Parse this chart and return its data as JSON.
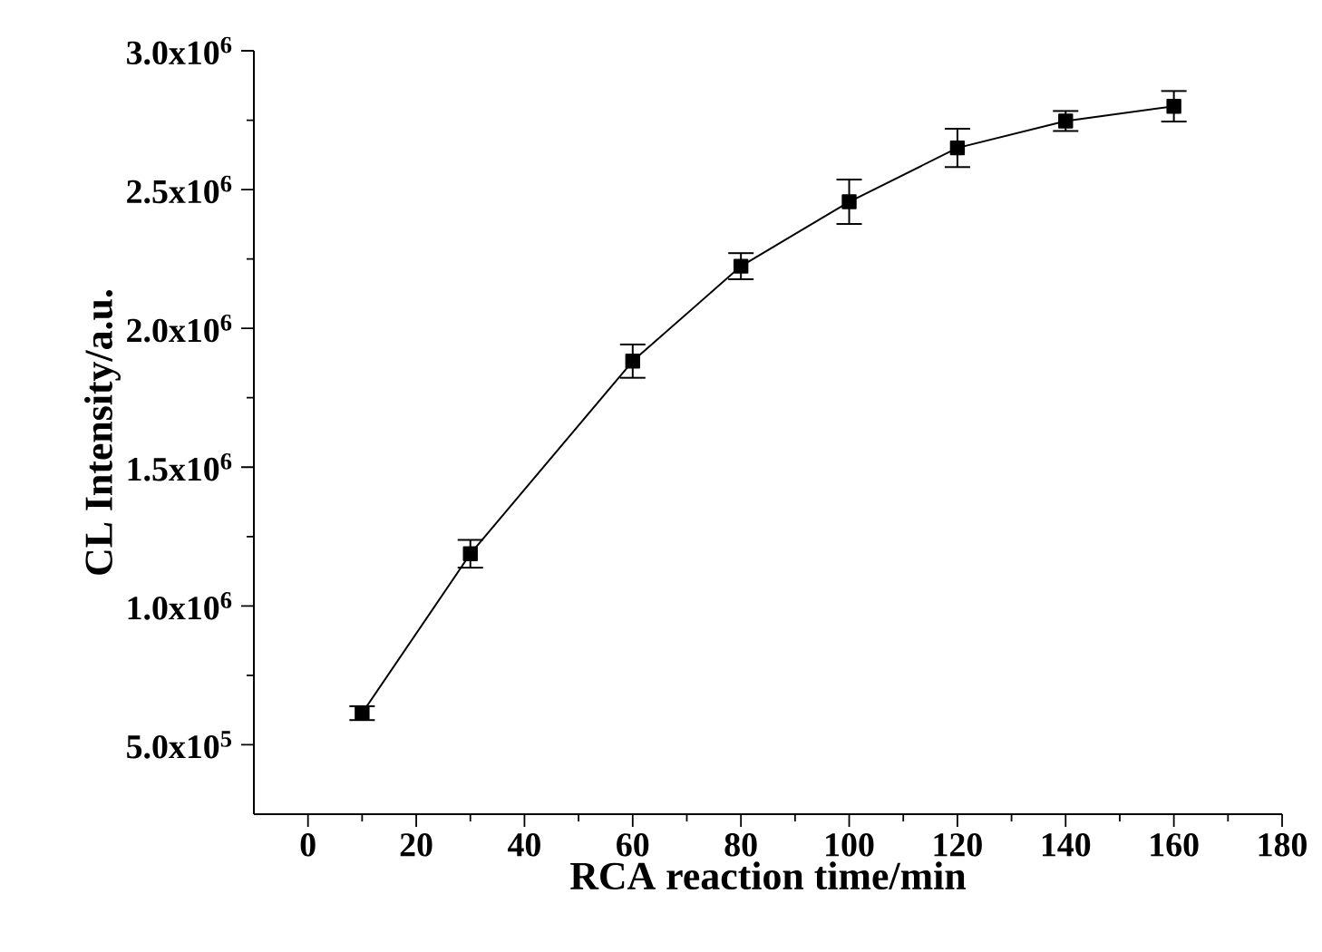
{
  "chart_data": {
    "type": "line",
    "xlabel": "RCA reaction time/min",
    "ylabel": "CL Intensity/a.u.",
    "x": [
      10,
      30,
      60,
      80,
      100,
      120,
      140,
      160
    ],
    "series": [
      {
        "color": "#000000",
        "values": [
          614000,
          1188000,
          1882000,
          2224000,
          2456000,
          2650000,
          2747000,
          2800000
        ],
        "errors": [
          25000,
          50000,
          60000,
          47000,
          80000,
          69000,
          36000,
          55000
        ]
      }
    ],
    "marker": "square",
    "line_style": "solid",
    "xlim": [
      -10,
      180
    ],
    "xticks": [
      0,
      20,
      40,
      60,
      80,
      100,
      120,
      140,
      160,
      180
    ],
    "ylim": [
      250000,
      3000000
    ],
    "yticks": [
      {
        "value": 500000,
        "label": "5.0x10$^{5}$"
      },
      {
        "value": 1000000,
        "label": "1.0x10$^{6}$"
      },
      {
        "value": 1500000,
        "label": "1.5x10$^{6}$"
      },
      {
        "value": 2000000,
        "label": "2.0x10$^{6}$"
      },
      {
        "value": 2500000,
        "label": "2.5x10$^{6}$"
      },
      {
        "value": 3000000,
        "label": "3.0x10$^{6}$"
      }
    ]
  }
}
